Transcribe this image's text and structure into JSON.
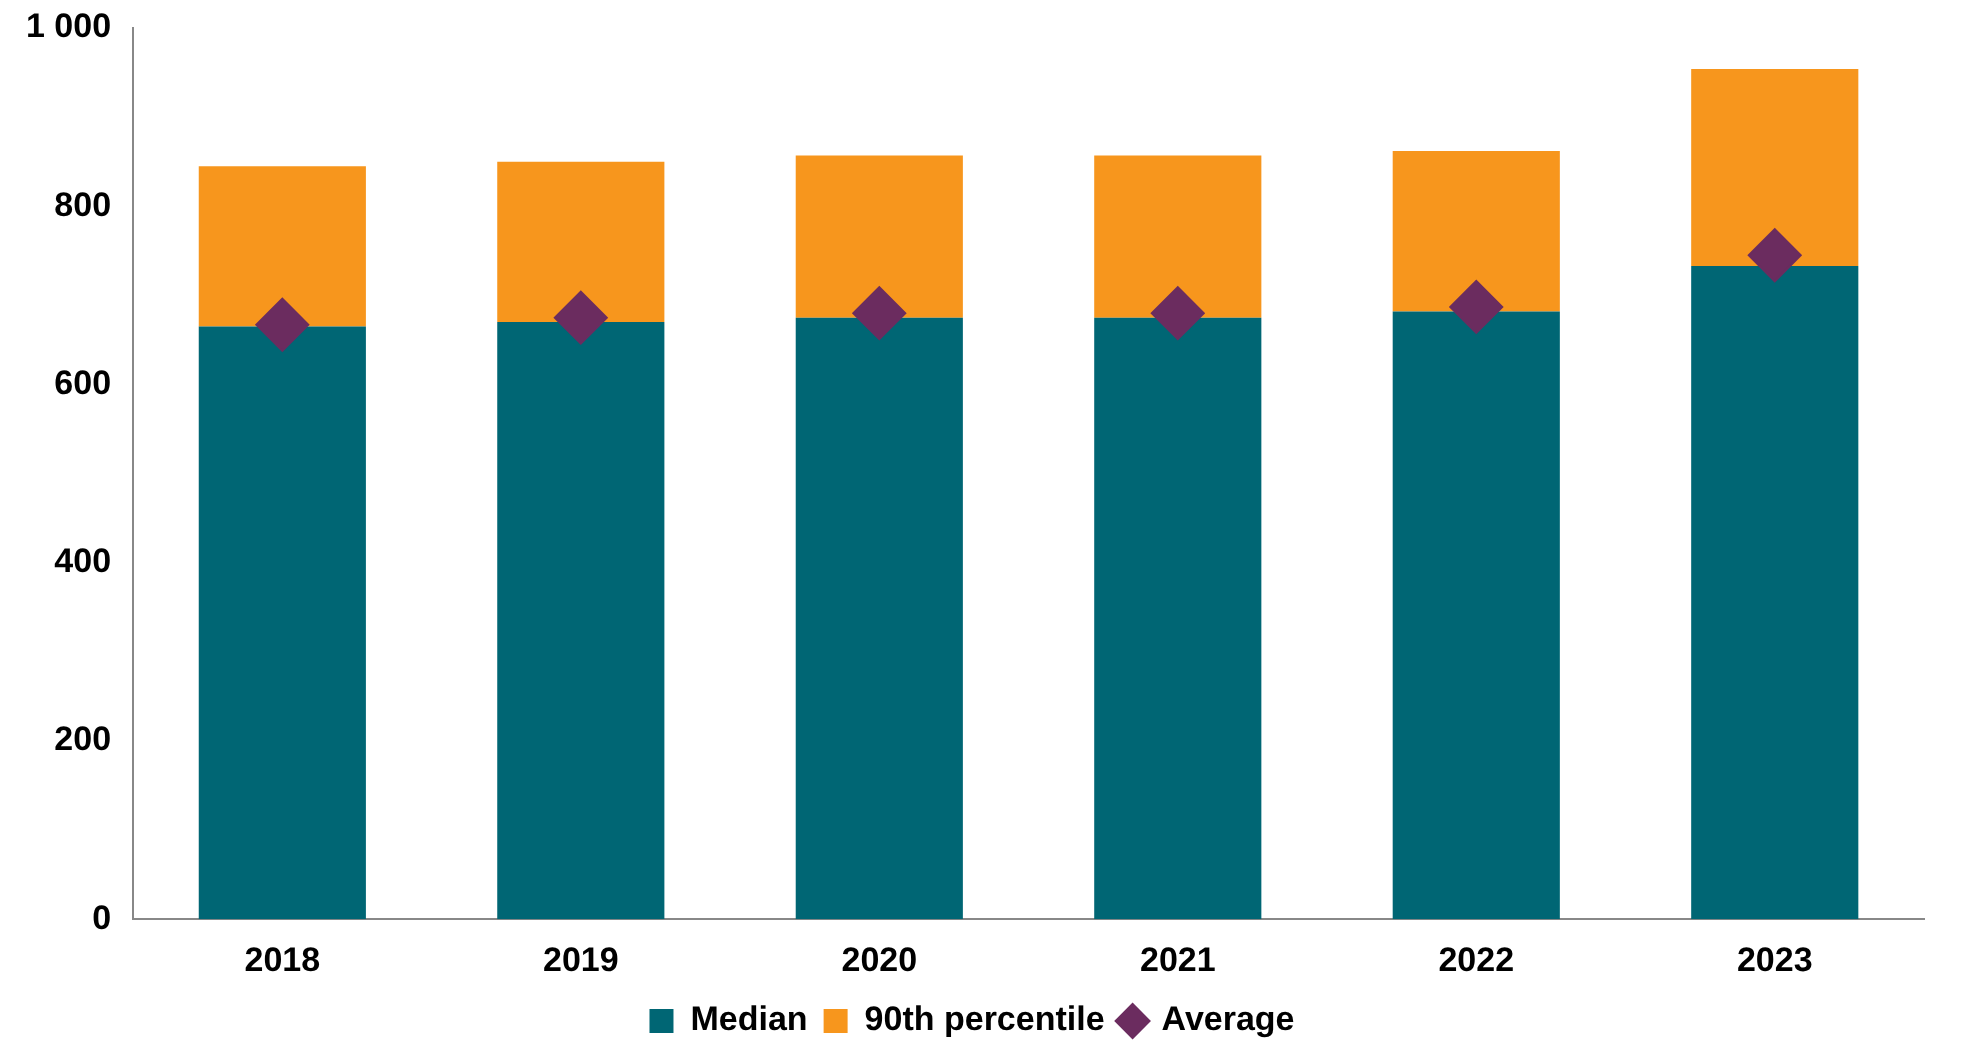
{
  "chart_data": {
    "type": "bar",
    "stacked": true,
    "categories": [
      "2018",
      "2019",
      "2020",
      "2021",
      "2022",
      "2023"
    ],
    "series": [
      {
        "name": "Median",
        "color": "#006674",
        "values": [
          665,
          670,
          675,
          675,
          682,
          733
        ]
      },
      {
        "name": "90th percentile",
        "color": "#f7961d",
        "values": [
          180,
          180,
          182,
          182,
          180,
          221
        ]
      },
      {
        "name": "Average",
        "type": "scatter",
        "color": "#6b2c5f",
        "marker": "diamond",
        "values": [
          667,
          675,
          680,
          680,
          687,
          745
        ]
      }
    ],
    "ylim": [
      0,
      1000
    ],
    "yticks": [
      0,
      200,
      400,
      600,
      800,
      {
        "value": 1000,
        "label": "1 000"
      }
    ],
    "grid": false,
    "legend": "bottom"
  }
}
